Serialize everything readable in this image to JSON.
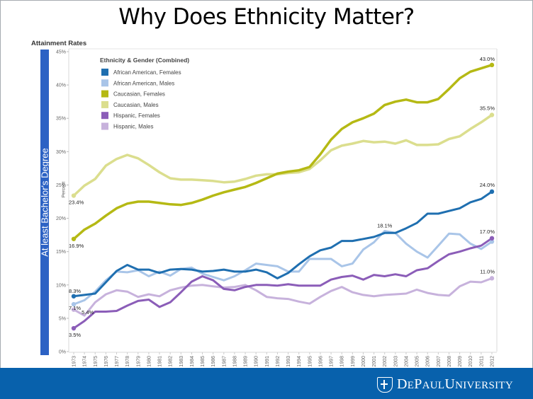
{
  "slide": {
    "title": "Why Does Ethnicity Matter?",
    "panel_title": "Attainment Rates",
    "side_label": "At least Bachelor's Degree",
    "footer_logo": "DePaul University",
    "footer_color": "#0861ac",
    "side_band_color": "#2c62c4"
  },
  "chart_data": {
    "type": "line",
    "title": "Attainment Rates",
    "xlabel": "",
    "ylabel": "Percent",
    "ylim": [
      0,
      45
    ],
    "yticks": [
      "0%",
      "5%",
      "10%",
      "15%",
      "20%",
      "25%",
      "30%",
      "35%",
      "40%",
      "45%"
    ],
    "ytick_values": [
      0,
      5,
      10,
      15,
      20,
      25,
      30,
      35,
      40,
      45
    ],
    "grid": false,
    "legend_title": "Ethnicity & Gender (Combined)",
    "legend_position": "top-left",
    "x": [
      "1973",
      "1974",
      "1975",
      "1976",
      "1977",
      "1978",
      "1979",
      "1980",
      "1981",
      "1982",
      "1983",
      "1984",
      "1985",
      "1986",
      "1987",
      "1988",
      "1989",
      "1990",
      "1991",
      "1992",
      "1993",
      "1994",
      "1995",
      "1996",
      "1997",
      "1998",
      "1999",
      "2000",
      "2001",
      "2002",
      "2003",
      "2004",
      "2005",
      "2006",
      "2007",
      "2008",
      "2009",
      "2010",
      "2011",
      "2012"
    ],
    "series": [
      {
        "name": "African American, Females",
        "color": "#1f6fb0",
        "width": 3,
        "values": [
          8.3,
          8.5,
          8.7,
          10.4,
          12.1,
          13.0,
          12.3,
          12.3,
          11.8,
          12.3,
          12.4,
          12.3,
          12.0,
          12.1,
          12.3,
          12.0,
          12.0,
          12.3,
          11.9,
          11.0,
          11.8,
          13.1,
          14.3,
          15.2,
          15.6,
          16.6,
          16.6,
          16.9,
          17.2,
          17.8,
          17.8,
          18.5,
          19.3,
          20.7,
          20.7,
          21.1,
          21.5,
          22.4,
          22.9,
          24.0
        ],
        "labels": {
          "first": "8.3%",
          "last": "24.0%"
        }
      },
      {
        "name": "African American, Males",
        "color": "#a9c5e8",
        "width": 3,
        "values": [
          7.1,
          7.7,
          9.0,
          10.7,
          12.0,
          11.9,
          12.2,
          11.3,
          12.0,
          11.4,
          12.4,
          12.6,
          11.7,
          11.2,
          10.7,
          11.3,
          12.2,
          13.2,
          13.0,
          12.8,
          12.0,
          12.0,
          13.9,
          13.9,
          13.9,
          12.8,
          13.2,
          15.3,
          16.4,
          18.1,
          17.8,
          16.2,
          15.0,
          14.1,
          15.9,
          17.7,
          17.6,
          16.2,
          15.4,
          16.5
        ],
        "labels": {
          "first": "7.1%",
          "peak": "18.1%"
        }
      },
      {
        "name": "Caucasian, Females",
        "color": "#b5b914",
        "width": 3.5,
        "values": [
          16.9,
          18.3,
          19.2,
          20.4,
          21.5,
          22.2,
          22.5,
          22.5,
          22.3,
          22.1,
          22.0,
          22.3,
          22.8,
          23.4,
          23.9,
          24.3,
          24.7,
          25.3,
          26.0,
          26.7,
          27.0,
          27.2,
          27.7,
          29.6,
          31.8,
          33.4,
          34.4,
          35.0,
          35.7,
          37.0,
          37.5,
          37.8,
          37.4,
          37.4,
          37.9,
          39.4,
          41.0,
          42.0,
          42.5,
          43.0
        ],
        "labels": {
          "first": "16.9%",
          "last": "43.0%"
        }
      },
      {
        "name": "Caucasian, Males",
        "color": "#dbde8e",
        "width": 3.5,
        "values": [
          23.4,
          24.9,
          25.9,
          27.9,
          28.9,
          29.5,
          29.0,
          28.0,
          26.9,
          26.0,
          25.8,
          25.8,
          25.7,
          25.6,
          25.4,
          25.5,
          25.9,
          26.4,
          26.6,
          26.6,
          26.8,
          26.9,
          27.4,
          28.7,
          30.2,
          30.9,
          31.2,
          31.6,
          31.4,
          31.5,
          31.2,
          31.7,
          31.0,
          31.0,
          31.1,
          31.9,
          32.3,
          33.4,
          34.4,
          35.5
        ],
        "labels": {
          "first": "23.4%",
          "last": "35.5%"
        }
      },
      {
        "name": "Hispanic, Females",
        "color": "#8b5db8",
        "width": 3,
        "values": [
          3.5,
          4.6,
          6.0,
          6.0,
          6.1,
          6.9,
          7.6,
          7.8,
          6.7,
          7.4,
          8.9,
          10.5,
          11.3,
          10.7,
          9.4,
          9.2,
          9.7,
          10.0,
          10.0,
          9.9,
          10.1,
          9.9,
          9.9,
          9.9,
          10.8,
          11.2,
          11.4,
          10.8,
          11.5,
          11.3,
          11.6,
          11.3,
          12.2,
          12.5,
          13.6,
          14.6,
          15.0,
          15.5,
          15.9,
          17.0
        ],
        "labels": {
          "first": "3.5%",
          "last": "17.0%"
        }
      },
      {
        "name": "Hispanic, Males",
        "color": "#c7b2dc",
        "width": 3,
        "values": [
          6.3,
          5.4,
          7.4,
          8.6,
          9.2,
          9.0,
          8.2,
          8.6,
          8.3,
          9.2,
          9.6,
          9.9,
          10.0,
          9.8,
          9.6,
          9.7,
          10.0,
          9.2,
          8.2,
          8.0,
          7.9,
          7.5,
          7.2,
          8.2,
          9.1,
          9.7,
          8.9,
          8.5,
          8.3,
          8.5,
          8.6,
          8.7,
          9.3,
          8.8,
          8.5,
          8.4,
          9.8,
          10.5,
          10.4,
          11.0
        ],
        "labels": {
          "second": "5.4%",
          "last": "11.0%"
        }
      }
    ]
  }
}
